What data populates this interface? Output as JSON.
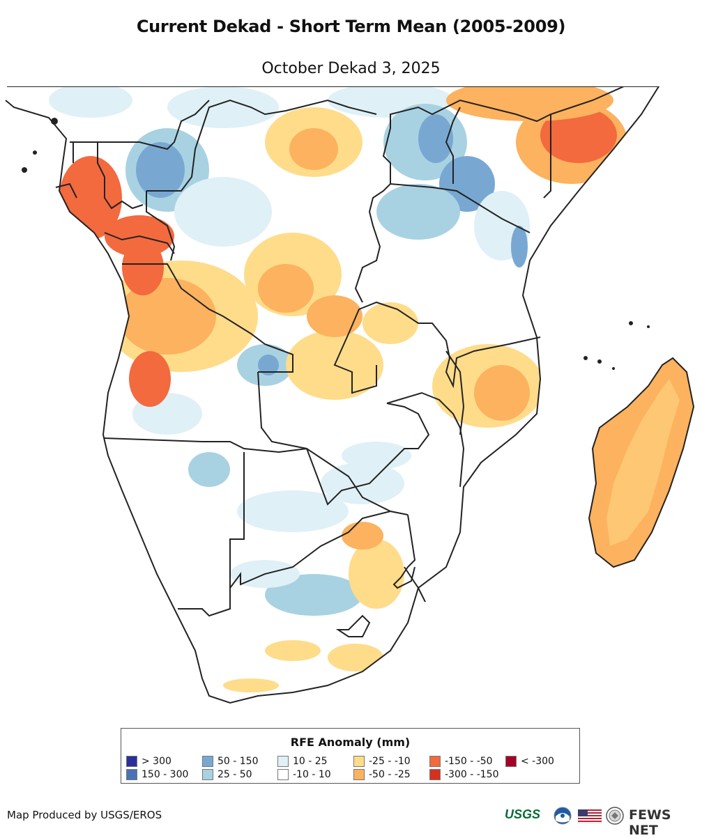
{
  "title": "Current Dekad - Short Term Mean (2005-2009)",
  "subtitle": "October Dekad 3, 2025",
  "legend": {
    "title": "RFE Anomaly (mm)",
    "items": [
      {
        "label": "> 300",
        "color": "#2b2f9a"
      },
      {
        "label": "150 - 300",
        "color": "#4a72b6"
      },
      {
        "label": "50 - 150",
        "color": "#78a8d2"
      },
      {
        "label": "25 - 50",
        "color": "#a8d2e2"
      },
      {
        "label": "10 - 25",
        "color": "#dff0f6"
      },
      {
        "label": "-10 - 10",
        "color": "#ffffff"
      },
      {
        "label": "-25 - -10",
        "color": "#fedc8a"
      },
      {
        "label": "-50 - -25",
        "color": "#fcb25e"
      },
      {
        "label": "-150 - -50",
        "color": "#f26a3e"
      },
      {
        "label": "-300 - -150",
        "color": "#d7301f"
      },
      {
        "label": "< -300",
        "color": "#a50026"
      }
    ]
  },
  "credit": "Map Produced by USGS/EROS",
  "logos": {
    "usgs": "USGS",
    "fews": "FEWS NET"
  },
  "colors": {
    "border": "#222222",
    "land": "#ffffff"
  }
}
